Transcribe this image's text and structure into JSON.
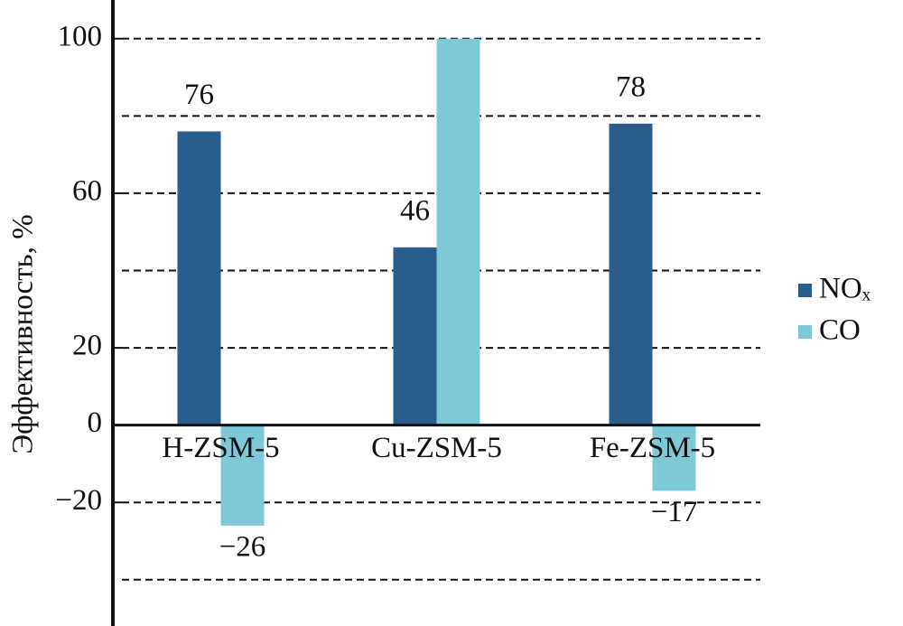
{
  "chart_data": {
    "type": "bar",
    "y_label": "Эффективность, %",
    "categories": [
      "H-ZSM-5",
      "Cu-ZSM-5",
      "Fe-ZSM-5"
    ],
    "series": [
      {
        "name": "NOₓ",
        "color": "#2b5d8c",
        "values": [
          76,
          46,
          78
        ],
        "value_labels": [
          "76",
          "46",
          "78"
        ]
      },
      {
        "name": "CO",
        "color": "#7fc8d8",
        "values": [
          -26,
          100,
          -17
        ],
        "value_labels": [
          "−26",
          null,
          "−17"
        ]
      }
    ],
    "ylim": [
      -48,
      110
    ],
    "yticks": [
      100,
      60,
      20,
      0,
      {
        "value": -20,
        "label": "−20"
      }
    ],
    "ygrid": [
      100,
      80,
      60,
      40,
      20,
      -20,
      -40
    ],
    "legend": "right"
  }
}
